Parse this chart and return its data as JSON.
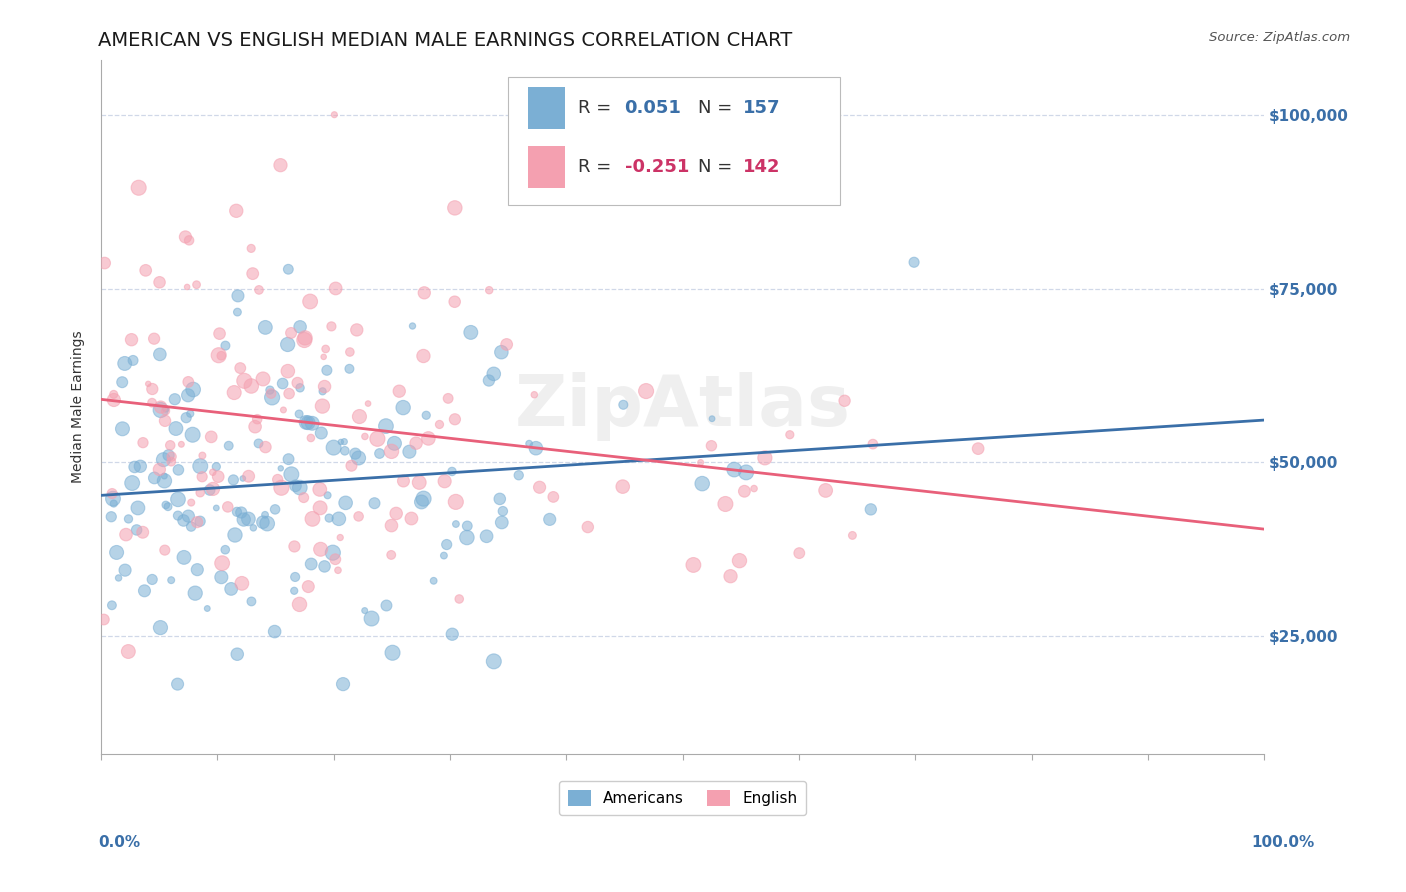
{
  "title": "AMERICAN VS ENGLISH MEDIAN MALE EARNINGS CORRELATION CHART",
  "source_text": "Source: ZipAtlas.com",
  "ylabel": "Median Male Earnings",
  "ytick_labels": [
    "$25,000",
    "$50,000",
    "$75,000",
    "$100,000"
  ],
  "ytick_values": [
    25000,
    50000,
    75000,
    100000
  ],
  "ymin": 8000,
  "ymax": 108000,
  "xmin": 0.0,
  "xmax": 1.0,
  "r_american": 0.051,
  "n_american": 157,
  "r_english": -0.251,
  "n_english": 142,
  "color_american": "#7BAFD4",
  "color_english": "#F4A0B0",
  "color_american_line": "#3A6FA8",
  "color_english_line": "#E8607A",
  "color_accent": "#3A6FA8",
  "color_english_accent": "#CC3366",
  "color_ytick": "#3A6FA8",
  "color_xtick": "#3A6FA8",
  "watermark_text": "ZipAtlas",
  "background_color": "#ffffff",
  "grid_color": "#d0d8e8",
  "title_fontsize": 14,
  "axis_label_fontsize": 10,
  "tick_fontsize": 11,
  "legend_fontsize": 13
}
